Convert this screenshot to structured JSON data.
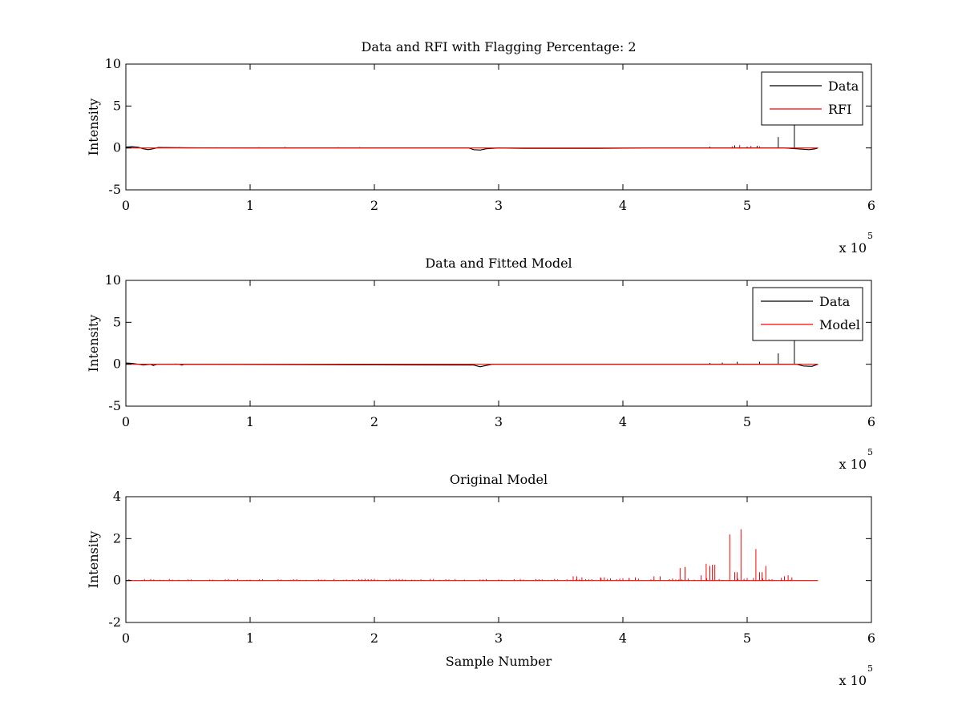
{
  "chart_data": [
    {
      "type": "line",
      "title": "Data and RFI with Flagging Percentage: 2",
      "xlabel": "",
      "ylabel": "Intensity",
      "xlim": [
        0,
        600000
      ],
      "ylim": [
        -5,
        10
      ],
      "xticks": [
        0,
        1,
        2,
        3,
        4,
        5,
        6
      ],
      "yticks": [
        -5,
        0,
        5,
        10
      ],
      "x_multiplier": "x 10",
      "x_multiplier_exp": "5",
      "legend_position": "top-right",
      "grid": false,
      "series": [
        {
          "name": "Data",
          "color": "#000000",
          "baseline": [
            [
              0,
              0.1
            ],
            [
              5000,
              0.15
            ],
            [
              10000,
              0.08
            ],
            [
              14000,
              -0.1
            ],
            [
              18000,
              -0.2
            ],
            [
              22000,
              -0.1
            ],
            [
              26000,
              0.05
            ],
            [
              50000,
              0.02
            ],
            [
              100000,
              0.0
            ],
            [
              200000,
              0.0
            ],
            [
              276000,
              0.0
            ],
            [
              280000,
              -0.2
            ],
            [
              285000,
              -0.25
            ],
            [
              290000,
              -0.1
            ],
            [
              300000,
              0.0
            ],
            [
              320000,
              -0.05
            ],
            [
              380000,
              -0.05
            ],
            [
              420000,
              0.0
            ],
            [
              500000,
              0.0
            ],
            [
              530000,
              0.0
            ],
            [
              550000,
              -0.2
            ],
            [
              555000,
              -0.1
            ],
            [
              557000,
              0.0
            ]
          ],
          "spikes": [
            [
              525000,
              1.3
            ],
            [
              538000,
              3.0
            ],
            [
              490000,
              0.3
            ],
            [
              508000,
              0.25
            ],
            [
              470000,
              0.15
            ],
            [
              500000,
              0.15
            ]
          ]
        },
        {
          "name": "RFI",
          "color": "#ff0000",
          "baseline": [
            [
              0,
              0
            ],
            [
              557000,
              0
            ]
          ],
          "spikes": [
            [
              30000,
              0.1
            ],
            [
              43000,
              0.12
            ],
            [
              73000,
              0.08
            ],
            [
              107000,
              0.1
            ],
            [
              128000,
              0.12
            ],
            [
              171000,
              0.1
            ],
            [
              188000,
              0.1
            ],
            [
              488000,
              0.2
            ],
            [
              494000,
              0.35
            ],
            [
              503000,
              0.25
            ],
            [
              510000,
              0.2
            ]
          ]
        }
      ]
    },
    {
      "type": "line",
      "title": "Data and Fitted Model",
      "xlabel": "",
      "ylabel": "Intensity",
      "xlim": [
        0,
        600000
      ],
      "ylim": [
        -5,
        10
      ],
      "xticks": [
        0,
        1,
        2,
        3,
        4,
        5,
        6
      ],
      "yticks": [
        -5,
        0,
        5,
        10
      ],
      "x_multiplier": "x 10",
      "x_multiplier_exp": "5",
      "legend_position": "top-right",
      "grid": false,
      "series": [
        {
          "name": "Data",
          "color": "#000000",
          "baseline": [
            [
              0,
              0.15
            ],
            [
              5000,
              0.1
            ],
            [
              10000,
              0.0
            ],
            [
              14000,
              -0.1
            ],
            [
              20000,
              0.0
            ],
            [
              22000,
              -0.15
            ],
            [
              25000,
              0.0
            ],
            [
              43000,
              0.0
            ],
            [
              45000,
              -0.1
            ],
            [
              47000,
              0.0
            ],
            [
              280000,
              -0.1
            ],
            [
              285000,
              -0.3
            ],
            [
              290000,
              -0.15
            ],
            [
              295000,
              0.0
            ],
            [
              540000,
              0.0
            ],
            [
              545000,
              -0.2
            ],
            [
              552000,
              -0.25
            ],
            [
              557000,
              0.0
            ]
          ],
          "spikes": [
            [
              525000,
              1.3
            ],
            [
              538000,
              2.8
            ],
            [
              492000,
              0.3
            ],
            [
              510000,
              0.3
            ],
            [
              480000,
              0.2
            ],
            [
              470000,
              0.15
            ]
          ]
        },
        {
          "name": "Model",
          "color": "#ff0000",
          "baseline": [
            [
              0,
              0
            ],
            [
              557000,
              0
            ]
          ],
          "spikes": [
            [
              40000,
              0.1
            ],
            [
              107000,
              0.05
            ],
            [
              171000,
              0.05
            ]
          ]
        }
      ]
    },
    {
      "type": "line",
      "title": "Original Model",
      "xlabel": "Sample Number",
      "ylabel": "Intensity",
      "xlim": [
        0,
        600000
      ],
      "ylim": [
        -2,
        4
      ],
      "xticks": [
        0,
        1,
        2,
        3,
        4,
        5,
        6
      ],
      "yticks": [
        -2,
        0,
        2,
        4
      ],
      "x_multiplier": "x 10",
      "x_multiplier_exp": "5",
      "grid": false,
      "series": [
        {
          "color": "#ff0000",
          "baseline": [
            [
              0,
              0
            ],
            [
              557000,
              0
            ]
          ],
          "spikes": [
            [
              360000,
              0.2
            ],
            [
              363000,
              0.2
            ],
            [
              367000,
              0.15
            ],
            [
              382000,
              0.15
            ],
            [
              385000,
              0.15
            ],
            [
              390000,
              0.1
            ],
            [
              405000,
              0.1
            ],
            [
              410000,
              0.15
            ],
            [
              425000,
              0.2
            ],
            [
              430000,
              0.2
            ],
            [
              446000,
              0.6
            ],
            [
              450000,
              0.65
            ],
            [
              463000,
              0.25
            ],
            [
              467000,
              0.8
            ],
            [
              470000,
              0.7
            ],
            [
              472000,
              0.75
            ],
            [
              474000,
              0.75
            ],
            [
              486000,
              2.2
            ],
            [
              490000,
              0.4
            ],
            [
              492000,
              0.4
            ],
            [
              495000,
              2.45
            ],
            [
              507000,
              1.5
            ],
            [
              510000,
              0.4
            ],
            [
              512000,
              0.4
            ],
            [
              515000,
              0.7
            ],
            [
              530000,
              0.2
            ],
            [
              533000,
              0.25
            ],
            [
              536000,
              0.15
            ]
          ],
          "noise_ranges": [
            [
              0,
              360000,
              0.06
            ],
            [
              360000,
              540000,
              0.1
            ]
          ]
        }
      ]
    }
  ]
}
